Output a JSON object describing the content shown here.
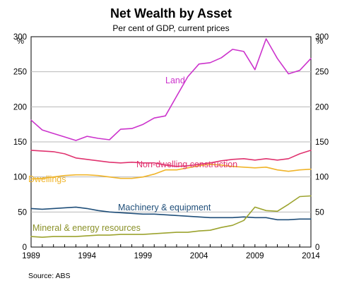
{
  "chart_data": {
    "type": "line",
    "title": "Net Wealth by Asset",
    "subtitle": "Per cent of GDP, current prices",
    "y_unit_left": "%",
    "y_unit_right": "%",
    "source": "Source:   ABS",
    "xlim": [
      1989,
      2014
    ],
    "ylim": [
      0,
      300
    ],
    "x_ticks": [
      1989,
      1994,
      1999,
      2004,
      2009,
      2014
    ],
    "x_tick_labels": [
      "1989",
      "1994",
      "1999",
      "2004",
      "2009",
      "2014"
    ],
    "y_ticks": [
      0,
      50,
      100,
      150,
      200,
      250,
      300
    ],
    "y_tick_labels": [
      "0",
      "50",
      "100",
      "150",
      "200",
      "250",
      "300"
    ],
    "grid": true,
    "x": [
      1989,
      1990,
      1991,
      1992,
      1993,
      1994,
      1995,
      1996,
      1997,
      1998,
      1999,
      2000,
      2001,
      2002,
      2003,
      2004,
      2005,
      2006,
      2007,
      2008,
      2009,
      2010,
      2011,
      2012,
      2013,
      2014
    ],
    "series": [
      {
        "name": "Land",
        "color": "#cc33cc",
        "values": [
          181,
          167,
          162,
          157,
          152,
          158,
          155,
          153,
          168,
          169,
          175,
          184,
          187,
          215,
          243,
          261,
          263,
          270,
          282,
          279,
          253,
          297,
          269,
          247,
          252,
          269
        ]
      },
      {
        "name": "Non-dwelling construction",
        "color": "#e0336f",
        "values": [
          138,
          137,
          136,
          133,
          127,
          125,
          123,
          121,
          120,
          121,
          120,
          120,
          117,
          115,
          116,
          118,
          120,
          123,
          125,
          126,
          124,
          126,
          124,
          126,
          133,
          138
        ]
      },
      {
        "name": "Dwellings",
        "color": "#f0b429",
        "values": [
          97,
          98,
          100,
          102,
          103,
          103,
          102,
          100,
          98,
          98,
          100,
          104,
          110,
          110,
          113,
          116,
          118,
          117,
          115,
          114,
          113,
          114,
          110,
          108,
          110,
          111
        ]
      },
      {
        "name": "Machinery & equipment",
        "color": "#1f4e79",
        "values": [
          55,
          54,
          55,
          56,
          57,
          55,
          52,
          50,
          49,
          48,
          47,
          47,
          46,
          45,
          44,
          43,
          42,
          42,
          42,
          43,
          42,
          42,
          39,
          39,
          40,
          40
        ]
      },
      {
        "name": "Mineral & energy resources",
        "color": "#9ca32e",
        "values": [
          15,
          14,
          15,
          15,
          15,
          16,
          17,
          17,
          18,
          18,
          18,
          19,
          20,
          21,
          21,
          23,
          24,
          28,
          31,
          38,
          57,
          52,
          51,
          61,
          72,
          73
        ]
      }
    ]
  }
}
